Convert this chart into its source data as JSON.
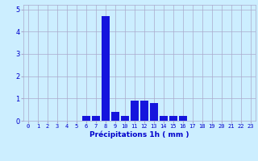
{
  "hours": [
    0,
    1,
    2,
    3,
    4,
    5,
    6,
    7,
    8,
    9,
    10,
    11,
    12,
    13,
    14,
    15,
    16,
    17,
    18,
    19,
    20,
    21,
    22,
    23
  ],
  "values": [
    0,
    0,
    0,
    0,
    0,
    0,
    0.2,
    0.2,
    4.7,
    0.4,
    0.2,
    0.9,
    0.9,
    0.8,
    0.2,
    0.2,
    0.2,
    0,
    0,
    0,
    0,
    0,
    0,
    0
  ],
  "bar_color": "#1515dd",
  "background_color": "#cceeff",
  "grid_color": "#aaaacc",
  "xlabel": "Précipitations 1h ( mm )",
  "xlabel_color": "#0000cc",
  "tick_color": "#0000cc",
  "ylim": [
    0,
    5.2
  ],
  "yticks": [
    0,
    1,
    2,
    3,
    4,
    5
  ],
  "tick_fontsize": 5.0,
  "xlabel_fontsize": 6.5
}
